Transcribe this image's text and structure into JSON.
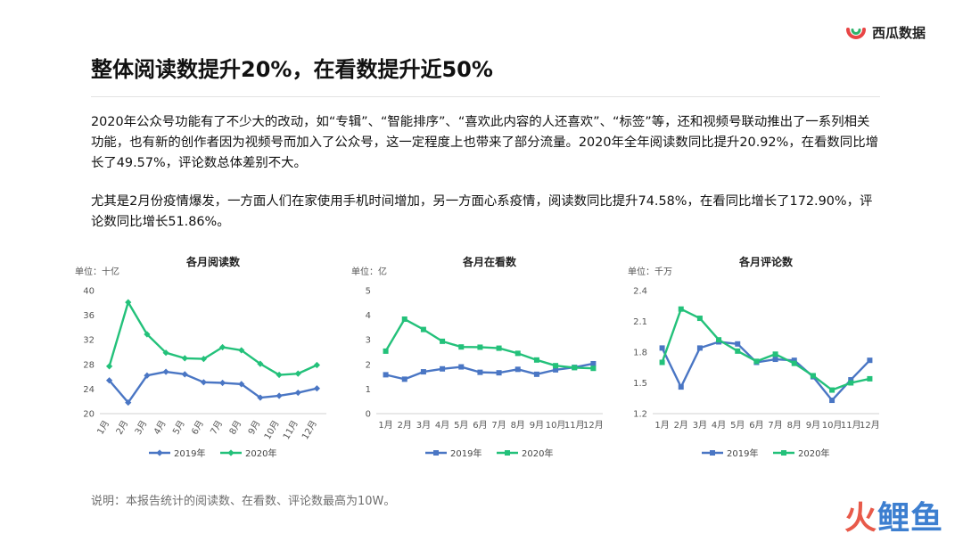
{
  "brand": {
    "name": "西瓜数据",
    "icon": "watermelon-logo-icon",
    "accent": "#e84545"
  },
  "title": "整体阅读数提升20%，在看数提升近50%",
  "paragraphs": [
    "2020年公众号功能有了不少大的改动，如“专辑”、“智能排序”、“喜欢此内容的人还喜欢”、“标签”等，还和视频号联动推出了一系列相关功能，也有新的创作者因为视频号而加入了公众号，这一定程度上也带来了部分流量。2020年全年阅读数同比提升20.92%，在看数同比增长了49.57%，评论数总体差别不大。",
    "尤其是2月份疫情爆发，一方面人们在家使用手机时间增加，另一方面心系疫情，阅读数同比提升74.58%，在看同比增长了172.90%，评论数同比增长51.86%。"
  ],
  "note": "说明：本报告统计的阅读数、在看数、评论数最高为10W。",
  "watermark": {
    "part1": "火",
    "part2": "鲤鱼"
  },
  "chart_data": [
    {
      "type": "line",
      "title": "各月阅读数",
      "unit": "单位：十亿",
      "categories": [
        "1月",
        "2月",
        "3月",
        "4月",
        "5月",
        "6月",
        "7月",
        "8月",
        "9月",
        "10月",
        "11月",
        "12月"
      ],
      "ylim": [
        20,
        40
      ],
      "yticks": [
        20,
        24,
        28,
        32,
        36,
        40
      ],
      "rotate_x_labels": true,
      "marker": "diamond",
      "series": [
        {
          "name": "2019年",
          "color": "#4a76c4",
          "values": [
            25.4,
            21.8,
            26.2,
            26.8,
            26.4,
            25.1,
            25.0,
            24.8,
            22.6,
            22.9,
            23.4,
            24.1
          ]
        },
        {
          "name": "2020年",
          "color": "#23c17a",
          "values": [
            27.7,
            38.1,
            32.9,
            29.9,
            29.0,
            28.9,
            30.8,
            30.3,
            28.1,
            26.3,
            26.5,
            27.9
          ]
        }
      ],
      "legend": "bottom"
    },
    {
      "type": "line",
      "title": "各月在看数",
      "unit": "单位：亿",
      "categories": [
        "1月",
        "2月",
        "3月",
        "4月",
        "5月",
        "6月",
        "7月",
        "8月",
        "9月",
        "10月",
        "11月",
        "12月"
      ],
      "ylim": [
        0,
        5
      ],
      "yticks": [
        0,
        1,
        2,
        3,
        4,
        5
      ],
      "rotate_x_labels": false,
      "marker": "square",
      "series": [
        {
          "name": "2019年",
          "color": "#4a76c4",
          "values": [
            1.58,
            1.4,
            1.7,
            1.82,
            1.9,
            1.68,
            1.66,
            1.8,
            1.6,
            1.78,
            1.88,
            2.03
          ]
        },
        {
          "name": "2020年",
          "color": "#23c17a",
          "values": [
            2.54,
            3.84,
            3.42,
            2.94,
            2.71,
            2.7,
            2.66,
            2.45,
            2.18,
            1.95,
            1.87,
            1.84
          ]
        }
      ],
      "legend": "bottom"
    },
    {
      "type": "line",
      "title": "各月评论数",
      "unit": "单位：千万",
      "categories": [
        "1月",
        "2月",
        "3月",
        "4月",
        "5月",
        "6月",
        "7月",
        "8月",
        "9月",
        "10月",
        "11月",
        "12月"
      ],
      "ylim": [
        1.2,
        2.4
      ],
      "yticks": [
        1.2,
        1.5,
        1.8,
        2.1,
        2.4
      ],
      "rotate_x_labels": false,
      "marker": "square",
      "series": [
        {
          "name": "2019年",
          "color": "#4a76c4",
          "values": [
            1.84,
            1.46,
            1.84,
            1.9,
            1.88,
            1.7,
            1.73,
            1.72,
            1.56,
            1.33,
            1.53,
            1.72
          ]
        },
        {
          "name": "2020年",
          "color": "#23c17a",
          "values": [
            1.7,
            2.22,
            2.13,
            1.92,
            1.81,
            1.71,
            1.78,
            1.69,
            1.57,
            1.43,
            1.5,
            1.54
          ]
        }
      ],
      "legend": "bottom"
    }
  ]
}
